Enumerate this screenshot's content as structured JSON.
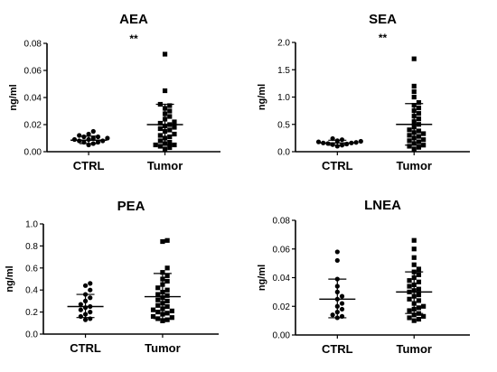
{
  "chart_data": [
    {
      "type": "scatter",
      "title": "AEA",
      "ylabel": "ng/ml",
      "significance": "**",
      "categories": [
        "CTRL",
        "Tumor"
      ],
      "ylim": [
        0,
        0.08
      ],
      "yticks": [
        "0.00",
        "0.02",
        "0.04",
        "0.06",
        "0.08"
      ],
      "series": [
        {
          "values": [
            0.005,
            0.006,
            0.007,
            0.007,
            0.008,
            0.008,
            0.009,
            0.009,
            0.01,
            0.01,
            0.011,
            0.011,
            0.012,
            0.013,
            0.015
          ],
          "mean": 0.0085,
          "sd_low": 0.006,
          "sd_high": 0.0115
        },
        {
          "values": [
            0.002,
            0.003,
            0.004,
            0.005,
            0.005,
            0.006,
            0.007,
            0.008,
            0.01,
            0.011,
            0.012,
            0.013,
            0.015,
            0.016,
            0.017,
            0.018,
            0.019,
            0.02,
            0.021,
            0.022,
            0.024,
            0.026,
            0.028,
            0.03,
            0.032,
            0.034,
            0.035,
            0.045,
            0.072
          ],
          "mean": 0.02,
          "sd_low": 0.005,
          "sd_high": 0.035
        }
      ]
    },
    {
      "type": "scatter",
      "title": "SEA",
      "ylabel": "ng/ml",
      "significance": "**",
      "categories": [
        "CTRL",
        "Tumor"
      ],
      "ylim": [
        0,
        2.0
      ],
      "yticks": [
        "0.0",
        "0.5",
        "1.0",
        "1.5",
        "2.0"
      ],
      "series": [
        {
          "values": [
            0.1,
            0.12,
            0.13,
            0.14,
            0.15,
            0.16,
            0.16,
            0.17,
            0.18,
            0.19,
            0.2,
            0.22,
            0.24
          ],
          "mean": 0.16,
          "sd_low": 0.12,
          "sd_high": 0.21
        },
        {
          "values": [
            0.05,
            0.08,
            0.1,
            0.12,
            0.15,
            0.18,
            0.2,
            0.22,
            0.25,
            0.28,
            0.3,
            0.33,
            0.35,
            0.38,
            0.4,
            0.45,
            0.5,
            0.55,
            0.6,
            0.65,
            0.7,
            0.75,
            0.8,
            0.85,
            0.9,
            1.0,
            1.1,
            1.2,
            1.7
          ],
          "mean": 0.5,
          "sd_low": 0.12,
          "sd_high": 0.88
        }
      ]
    },
    {
      "type": "scatter",
      "title": "PEA",
      "ylabel": "ng/ml",
      "significance": "",
      "categories": [
        "CTRL",
        "Tumor"
      ],
      "ylim": [
        0,
        1.0
      ],
      "yticks": [
        "0.0",
        "0.2",
        "0.4",
        "0.6",
        "0.8",
        "1.0"
      ],
      "series": [
        {
          "values": [
            0.13,
            0.14,
            0.16,
            0.18,
            0.2,
            0.22,
            0.24,
            0.25,
            0.27,
            0.3,
            0.33,
            0.36,
            0.4,
            0.44,
            0.46
          ],
          "mean": 0.25,
          "sd_low": 0.15,
          "sd_high": 0.36
        },
        {
          "values": [
            0.12,
            0.13,
            0.14,
            0.15,
            0.16,
            0.18,
            0.19,
            0.2,
            0.21,
            0.22,
            0.23,
            0.25,
            0.26,
            0.28,
            0.3,
            0.31,
            0.33,
            0.35,
            0.36,
            0.38,
            0.4,
            0.42,
            0.45,
            0.48,
            0.5,
            0.53,
            0.56,
            0.6,
            0.84,
            0.85
          ],
          "mean": 0.34,
          "sd_low": 0.14,
          "sd_high": 0.55
        }
      ]
    },
    {
      "type": "scatter",
      "title": "LNEA",
      "ylabel": "ng/ml",
      "significance": "",
      "categories": [
        "CTRL",
        "Tumor"
      ],
      "ylim": [
        0,
        0.08
      ],
      "yticks": [
        "0.00",
        "0.02",
        "0.04",
        "0.06",
        "0.08"
      ],
      "series": [
        {
          "values": [
            0.012,
            0.013,
            0.014,
            0.016,
            0.018,
            0.02,
            0.022,
            0.025,
            0.027,
            0.03,
            0.034,
            0.039,
            0.052,
            0.058
          ],
          "mean": 0.025,
          "sd_low": 0.012,
          "sd_high": 0.039
        },
        {
          "values": [
            0.01,
            0.011,
            0.012,
            0.013,
            0.014,
            0.015,
            0.017,
            0.018,
            0.019,
            0.02,
            0.022,
            0.024,
            0.025,
            0.027,
            0.028,
            0.03,
            0.031,
            0.032,
            0.034,
            0.035,
            0.037,
            0.038,
            0.04,
            0.042,
            0.044,
            0.046,
            0.049,
            0.054,
            0.06,
            0.066
          ],
          "mean": 0.03,
          "sd_low": 0.015,
          "sd_high": 0.044
        }
      ]
    }
  ]
}
